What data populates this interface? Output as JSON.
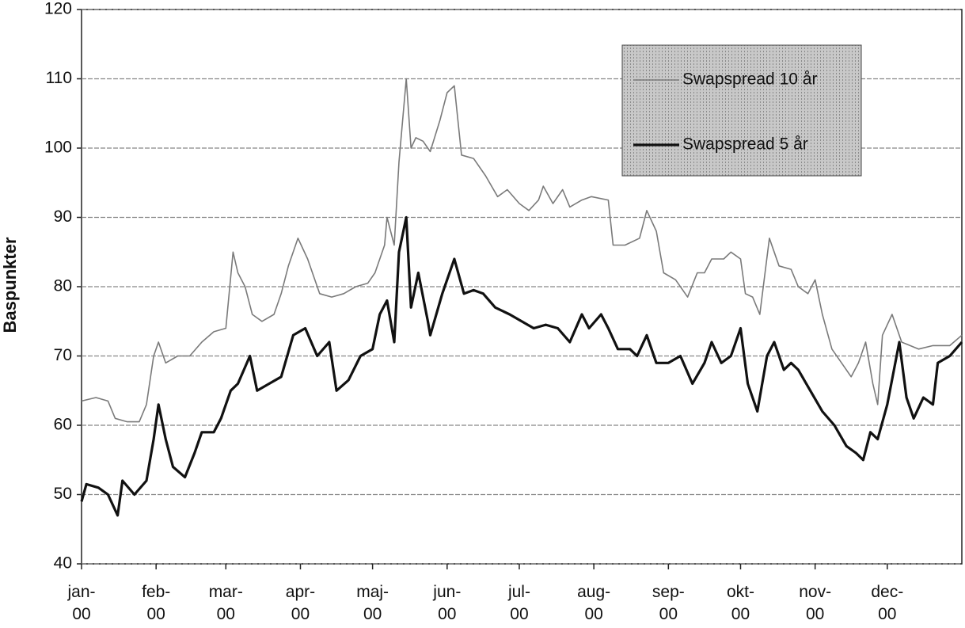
{
  "chart_data": {
    "type": "line",
    "y_label": "Baspunkter",
    "xlim": [
      0,
      366
    ],
    "xticks": [
      {
        "value": 0,
        "label": "jan-00"
      },
      {
        "value": 31,
        "label": "feb-00"
      },
      {
        "value": 60,
        "label": "mar-00"
      },
      {
        "value": 91,
        "label": "apr-00"
      },
      {
        "value": 121,
        "label": "maj-00"
      },
      {
        "value": 152,
        "label": "jun-00"
      },
      {
        "value": 182,
        "label": "jul-00"
      },
      {
        "value": 213,
        "label": "aug-00"
      },
      {
        "value": 244,
        "label": "sep-00"
      },
      {
        "value": 274,
        "label": "okt-00"
      },
      {
        "value": 305,
        "label": "nov-00"
      },
      {
        "value": 335,
        "label": "dec-00"
      }
    ],
    "ylim": [
      40,
      120
    ],
    "yticks": [
      40,
      50,
      60,
      70,
      80,
      90,
      100,
      110,
      120
    ],
    "grid": true,
    "legend": "upper right",
    "series": [
      {
        "name": "Swapspread 10 år",
        "color": "#7a7a7a",
        "x": [
          0,
          6,
          11,
          14,
          19,
          24,
          27,
          30,
          32,
          35,
          40,
          45,
          50,
          55,
          60,
          63,
          65,
          68,
          71,
          75,
          80,
          83,
          86,
          90,
          94,
          99,
          104,
          109,
          114,
          119,
          122,
          126,
          127,
          130,
          132,
          135,
          137,
          139,
          142,
          145,
          149,
          152,
          155,
          158,
          163,
          168,
          173,
          177,
          182,
          186,
          190,
          192,
          196,
          200,
          203,
          208,
          212,
          219,
          221,
          226,
          232,
          235,
          239,
          242,
          247,
          252,
          256,
          259,
          262,
          267,
          270,
          274,
          276,
          279,
          282,
          286,
          290,
          295,
          298,
          302,
          305,
          308,
          312,
          316,
          320,
          323,
          326,
          329,
          331,
          333,
          337,
          341,
          348,
          354,
          361,
          366
        ],
        "values": [
          63.5,
          64,
          63.5,
          61,
          60.5,
          60.5,
          63,
          70,
          72,
          69,
          70,
          70,
          72,
          73.5,
          74,
          85,
          82,
          80,
          76,
          75,
          76,
          79,
          83,
          87,
          84,
          79,
          78.5,
          79,
          80,
          80.5,
          82,
          86,
          90,
          86,
          98,
          110,
          100,
          101.5,
          101,
          99.5,
          104,
          108,
          109,
          99,
          98.5,
          96,
          93,
          94,
          92,
          91,
          92.5,
          94.5,
          92,
          94,
          91.5,
          92.5,
          93,
          92.5,
          86,
          86,
          87,
          91,
          88,
          82,
          81,
          78.5,
          82,
          82,
          84,
          84,
          85,
          84,
          79,
          78.5,
          76,
          87,
          83,
          82.5,
          80,
          79,
          81,
          76,
          71,
          69,
          67,
          69,
          72,
          66,
          63,
          73,
          76,
          72,
          71,
          71.5,
          71.5,
          73
        ]
      },
      {
        "name": "Swapspread 5 år",
        "color": "#111111",
        "x": [
          0,
          2,
          7,
          11,
          15,
          17,
          22,
          27,
          30,
          32,
          35,
          38,
          43,
          47,
          50,
          55,
          58,
          62,
          65,
          70,
          73,
          78,
          83,
          88,
          93,
          98,
          103,
          106,
          111,
          116,
          121,
          124,
          127,
          130,
          132,
          135,
          137,
          140,
          144,
          145,
          150,
          155,
          159,
          163,
          167,
          172,
          178,
          183,
          188,
          193,
          198,
          203,
          208,
          211,
          216,
          219,
          223,
          228,
          231,
          235,
          239,
          244,
          249,
          254,
          259,
          262,
          266,
          270,
          274,
          277,
          281,
          285,
          288,
          292,
          295,
          298,
          303,
          308,
          313,
          318,
          322,
          325,
          328,
          331,
          335,
          340,
          343,
          346,
          350,
          354,
          356,
          361,
          366
        ],
        "values": [
          49,
          51.5,
          51,
          50,
          47,
          52,
          50,
          52,
          58,
          63,
          58,
          54,
          52.5,
          56,
          59,
          59,
          61,
          65,
          66,
          70,
          65,
          66,
          67,
          73,
          74,
          70,
          72,
          65,
          66.5,
          70,
          71,
          76,
          78,
          72,
          85,
          90,
          77,
          82,
          75,
          73,
          79,
          84,
          79,
          79.5,
          79,
          77,
          76,
          75,
          74,
          74.5,
          74,
          72,
          76,
          74,
          76,
          74,
          71,
          71,
          70,
          73,
          69,
          69,
          70,
          66,
          69,
          72,
          69,
          70,
          74,
          66,
          62,
          70,
          72,
          68,
          69,
          68,
          65,
          62,
          60,
          57,
          56,
          55,
          59,
          58,
          63,
          72,
          64,
          61,
          64,
          63,
          69,
          70,
          72
        ]
      }
    ]
  }
}
